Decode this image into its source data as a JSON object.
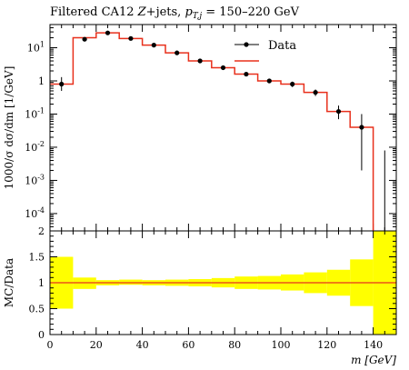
{
  "title": {
    "prefix": "Filtered CA12 ",
    "italic": "Z",
    "mid": "+jets, ",
    "var": "p",
    "sub": "T,j",
    "suffix": " = 150–220 GeV"
  },
  "legend": {
    "data_label": "Data",
    "mc_label": ""
  },
  "chart_data": [
    {
      "type": "line",
      "panel": "main",
      "ylabel": "1000/σ dσ/dm [1/GeV]",
      "yscale": "log",
      "ylim": [
        3e-05,
        50
      ],
      "xlim": [
        0,
        150
      ],
      "ytick_labels": [
        "10^-4",
        "10^-3",
        "10^-2",
        "10^-1",
        "1",
        "10^1"
      ],
      "yticks": [
        0.0001,
        0.001,
        0.01,
        0.1,
        1,
        10
      ],
      "mc": {
        "edges": [
          0,
          5,
          10,
          20,
          30,
          40,
          50,
          60,
          70,
          80,
          90,
          100,
          110,
          120,
          130,
          140
        ],
        "values": [
          0.8,
          0.8,
          20,
          28,
          19,
          12,
          7,
          4,
          2.5,
          1.6,
          1.0,
          0.8,
          0.45,
          0.12,
          0.04
        ]
      },
      "data": {
        "x": [
          5,
          15,
          25,
          35,
          45,
          55,
          65,
          75,
          85,
          95,
          105,
          115,
          125,
          135,
          145
        ],
        "y": [
          0.8,
          18,
          28,
          19,
          12,
          7,
          4,
          2.5,
          1.6,
          1.0,
          0.8,
          0.45,
          0.12,
          0.04,
          null
        ],
        "yerr_low": [
          0.3,
          2,
          3,
          2,
          1.2,
          0.8,
          0.5,
          0.3,
          0.2,
          0.15,
          0.15,
          0.1,
          0.05,
          0.038,
          null
        ],
        "yerr_high": [
          0.5,
          2,
          3,
          2,
          1.2,
          0.8,
          0.5,
          0.3,
          0.2,
          0.15,
          0.15,
          0.1,
          0.06,
          0.06,
          null
        ],
        "upper_error_only": {
          "x": 145,
          "top": 0.008
        }
      }
    },
    {
      "type": "area",
      "panel": "ratio",
      "ylabel": "MC/Data",
      "xlabel": "m [GeV]",
      "ylim": [
        0,
        2
      ],
      "xlim": [
        0,
        150
      ],
      "xticks": [
        0,
        20,
        40,
        60,
        80,
        100,
        120,
        140
      ],
      "yticks": [
        0,
        0.5,
        1,
        1.5,
        2
      ],
      "ytick_labels": [
        "0",
        "0.5",
        "1",
        "1.5",
        "2"
      ],
      "reference": 1,
      "band": {
        "edges": [
          0,
          10,
          20,
          30,
          40,
          50,
          60,
          70,
          80,
          90,
          100,
          110,
          120,
          130,
          140,
          150
        ],
        "low": [
          0.5,
          0.88,
          0.95,
          0.96,
          0.95,
          0.94,
          0.93,
          0.91,
          0.88,
          0.87,
          0.85,
          0.8,
          0.75,
          0.55,
          0.0
        ],
        "high": [
          1.5,
          1.1,
          1.05,
          1.06,
          1.05,
          1.06,
          1.07,
          1.09,
          1.12,
          1.13,
          1.16,
          1.2,
          1.25,
          1.45,
          2.0
        ]
      },
      "mc_ratio": 1.0
    }
  ],
  "colors": {
    "mc": "#e8301c",
    "band": "#ffff00",
    "data": "#000000"
  }
}
